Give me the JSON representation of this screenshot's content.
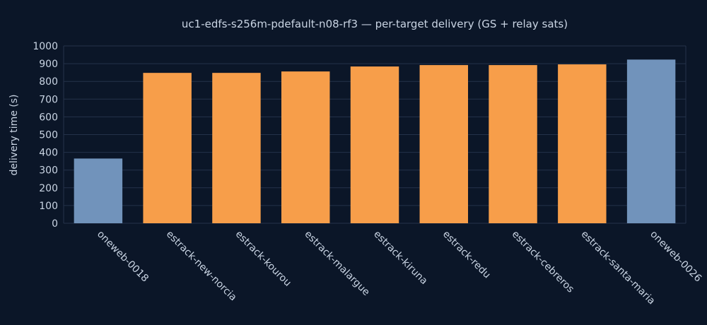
{
  "chart_data": {
    "type": "bar",
    "title": "uc1-edfs-s256m-pdefault-n08-rf3 — per-target delivery (GS + relay sats)",
    "xlabel": "",
    "ylabel": "delivery time (s)",
    "ylim": [
      0,
      1000
    ],
    "yticks": [
      0,
      100,
      200,
      300,
      400,
      500,
      600,
      700,
      800,
      900,
      1000
    ],
    "grid": true,
    "categories": [
      "oneweb-0018",
      "estrack-new-norcia",
      "estrack-kourou",
      "estrack-malargue",
      "estrack-kiruna",
      "estrack-redu",
      "estrack-cebreros",
      "estrack-santa-maria",
      "oneweb-0026"
    ],
    "values": [
      365,
      848,
      848,
      856,
      884,
      892,
      892,
      896,
      923
    ],
    "bar_kinds": [
      "relay",
      "ground",
      "ground",
      "ground",
      "ground",
      "ground",
      "ground",
      "ground",
      "relay"
    ],
    "colors": {
      "relay": "#7193bb",
      "ground": "#f79e4a",
      "background": "#0b1628",
      "grid": "#24324a",
      "text": "#c9d4e3"
    }
  }
}
